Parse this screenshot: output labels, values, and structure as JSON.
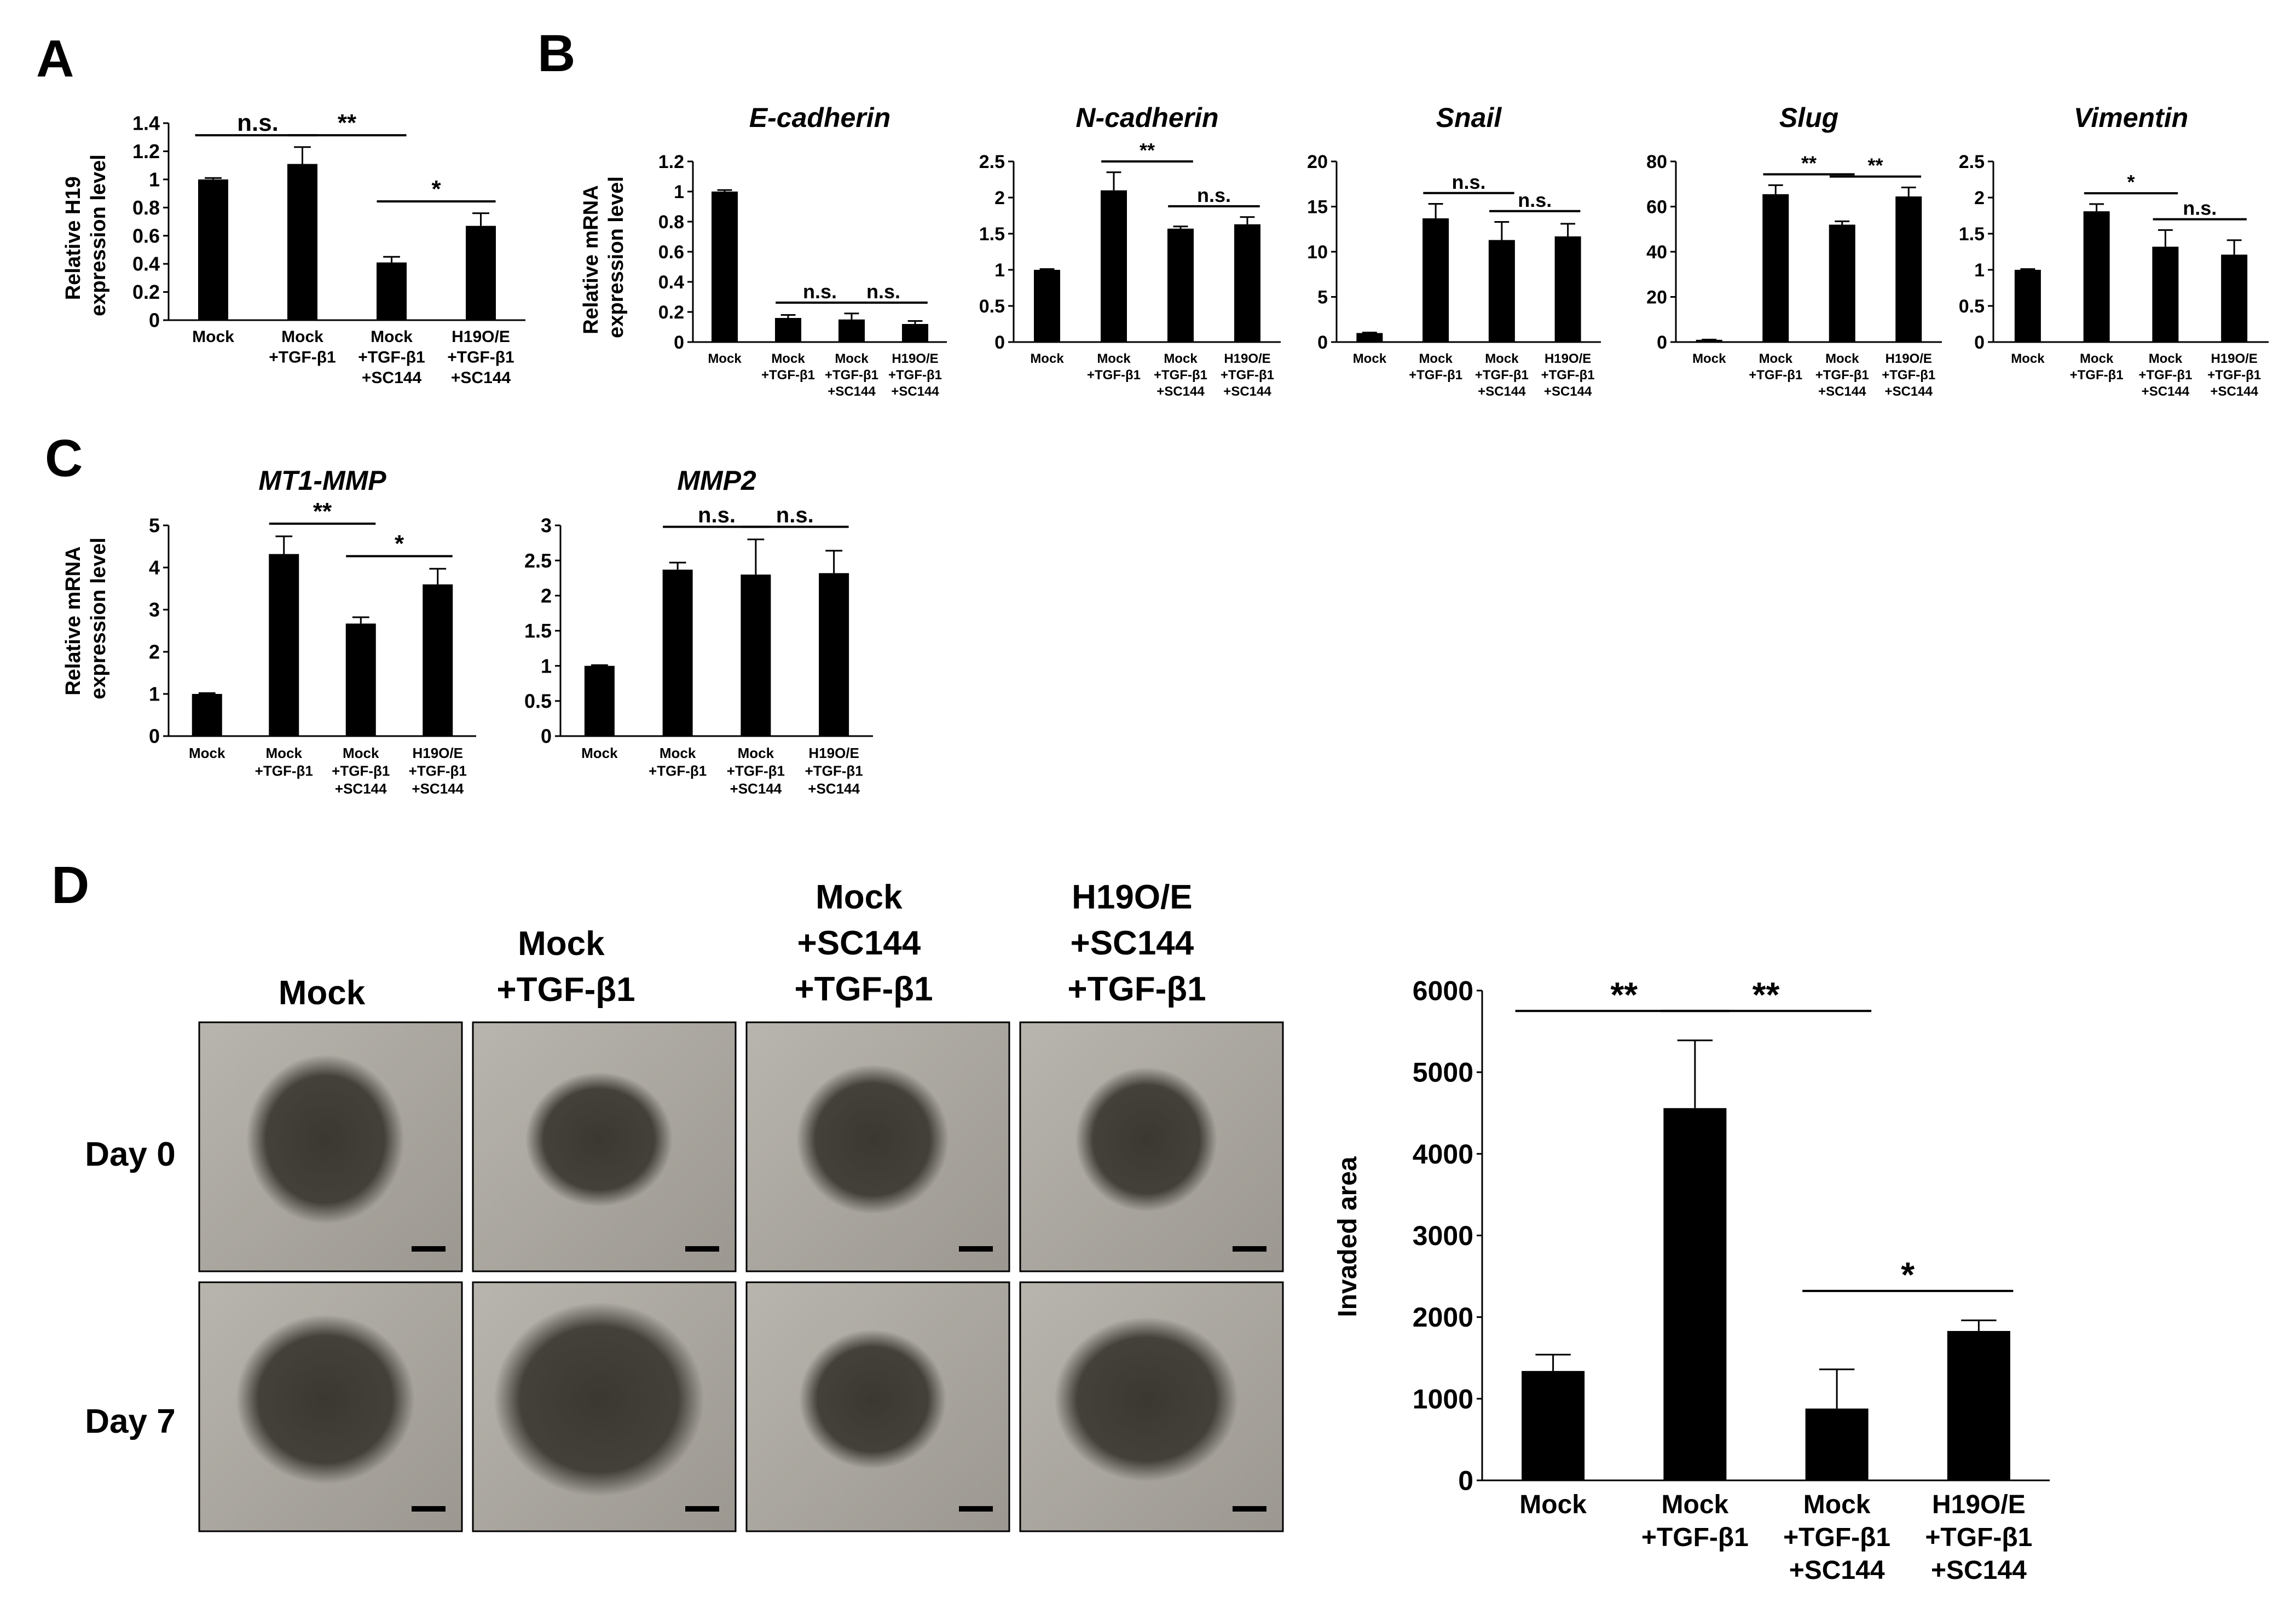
{
  "panels": {
    "A": "A",
    "B": "B",
    "C": "C",
    "D": "D"
  },
  "conditions": {
    "mock": "Mock",
    "tgf": [
      "Mock",
      "+TGF-β1"
    ],
    "sc144": [
      "Mock",
      "+TGF-β1",
      "+SC144"
    ],
    "h19": [
      "H19O/E",
      "+TGF-β1",
      "+SC144"
    ]
  },
  "ylabels": {
    "h19": [
      "Relative H19",
      "expression level"
    ],
    "mrna": [
      "Relative mRNA",
      "expression level"
    ],
    "invaded": "Invaded area"
  },
  "photo_panel": {
    "columns": [
      [
        "Mock"
      ],
      [
        "Mock",
        "+TGF-β1"
      ],
      [
        "Mock",
        "+SC144",
        "+TGF-β1"
      ],
      [
        "H19O/E",
        "+SC144",
        "+TGF-β1"
      ]
    ],
    "rows": [
      "Day 0",
      "Day 7"
    ],
    "image_tint": "#9c9891",
    "sphere_color": "#3a3830"
  },
  "chart_data": [
    {
      "id": "A",
      "type": "bar",
      "title": "",
      "categories": [
        "Mock",
        "Mock +TGF-β1",
        "Mock +TGF-β1 +SC144",
        "H19O/E +TGF-β1 +SC144"
      ],
      "values": [
        1.0,
        1.11,
        0.41,
        0.67
      ],
      "errors": [
        0.01,
        0.12,
        0.04,
        0.09
      ],
      "ylim": [
        0,
        1.4
      ],
      "yticks": [
        "0",
        "0.2",
        "0.4",
        "0.6",
        "0.8",
        "1",
        "1.2",
        "1.4"
      ],
      "ylabel": "Relative H19 expression level",
      "significance": [
        {
          "from": 0,
          "to": 1,
          "label": "n.s."
        },
        {
          "from": 1,
          "to": 2,
          "label": "**"
        },
        {
          "from": 2,
          "to": 3,
          "label": "*"
        }
      ]
    },
    {
      "id": "B1",
      "type": "bar",
      "title": "E-cadherin",
      "categories": [
        "Mock",
        "Mock +TGF-β1",
        "Mock +TGF-β1 +SC144",
        "H19O/E +TGF-β1 +SC144"
      ],
      "values": [
        1.0,
        0.16,
        0.15,
        0.12
      ],
      "errors": [
        0.01,
        0.02,
        0.04,
        0.02
      ],
      "ylim": [
        0,
        1.2
      ],
      "yticks": [
        "0",
        "0.2",
        "0.4",
        "0.6",
        "0.8",
        "1",
        "1.2"
      ],
      "ylabel": "Relative mRNA expression level",
      "significance": [
        {
          "from": 1,
          "to": 2,
          "label": "n.s."
        },
        {
          "from": 2,
          "to": 3,
          "label": "n.s."
        }
      ]
    },
    {
      "id": "B2",
      "type": "bar",
      "title": "N-cadherin",
      "categories": [
        "Mock",
        "Mock +TGF-β1",
        "Mock +TGF-β1 +SC144",
        "H19O/E +TGF-β1 +SC144"
      ],
      "values": [
        1.0,
        2.1,
        1.57,
        1.63
      ],
      "errors": [
        0.01,
        0.25,
        0.03,
        0.1
      ],
      "ylim": [
        0,
        2.5
      ],
      "yticks": [
        "0",
        "0.5",
        "1",
        "1.5",
        "2",
        "2.5"
      ],
      "ylabel": "",
      "significance": [
        {
          "from": 1,
          "to": 2,
          "label": "**"
        },
        {
          "from": 2,
          "to": 3,
          "label": "n.s."
        }
      ]
    },
    {
      "id": "B3",
      "type": "bar",
      "title": "Snail",
      "categories": [
        "Mock",
        "Mock +TGF-β1",
        "Mock +TGF-β1 +SC144",
        "H19O/E +TGF-β1 +SC144"
      ],
      "values": [
        1.0,
        13.7,
        11.3,
        11.7
      ],
      "errors": [
        0.05,
        1.6,
        2.0,
        1.4
      ],
      "ylim": [
        0,
        20
      ],
      "yticks": [
        "0",
        "5",
        "10",
        "15",
        "20"
      ],
      "ylabel": "",
      "significance": [
        {
          "from": 1,
          "to": 2,
          "label": "n.s."
        },
        {
          "from": 2,
          "to": 3,
          "label": "n.s."
        }
      ]
    },
    {
      "id": "B4",
      "type": "bar",
      "title": "Slug",
      "categories": [
        "Mock",
        "Mock +TGF-β1",
        "Mock +TGF-β1 +SC144",
        "H19O/E +TGF-β1 +SC144"
      ],
      "values": [
        1.0,
        65.5,
        52.0,
        64.5
      ],
      "errors": [
        0.1,
        4.0,
        1.5,
        4.0
      ],
      "ylim": [
        0,
        80
      ],
      "yticks": [
        "0",
        "20",
        "40",
        "60",
        "80"
      ],
      "ylabel": "",
      "significance": [
        {
          "from": 1,
          "to": 2,
          "label": "**"
        },
        {
          "from": 2,
          "to": 3,
          "label": "**"
        }
      ]
    },
    {
      "id": "B5",
      "type": "bar",
      "title": "Vimentin",
      "categories": [
        "Mock",
        "Mock +TGF-β1",
        "Mock +TGF-β1 +SC144",
        "H19O/E +TGF-β1 +SC144"
      ],
      "values": [
        1.0,
        1.81,
        1.32,
        1.21
      ],
      "errors": [
        0.01,
        0.1,
        0.23,
        0.2
      ],
      "ylim": [
        0,
        2.5
      ],
      "yticks": [
        "0",
        "0.5",
        "1",
        "1.5",
        "2",
        "2.5"
      ],
      "ylabel": "",
      "significance": [
        {
          "from": 1,
          "to": 2,
          "label": "*"
        },
        {
          "from": 2,
          "to": 3,
          "label": "n.s."
        }
      ]
    },
    {
      "id": "C1",
      "type": "bar",
      "title": "MT1-MMP",
      "categories": [
        "Mock",
        "Mock +TGF-β1",
        "Mock +TGF-β1 +SC144",
        "H19O/E +TGF-β1 +SC144"
      ],
      "values": [
        1.0,
        4.32,
        2.67,
        3.6
      ],
      "errors": [
        0.02,
        0.42,
        0.15,
        0.37
      ],
      "ylim": [
        0,
        5
      ],
      "yticks": [
        "0",
        "1",
        "2",
        "3",
        "4",
        "5"
      ],
      "ylabel": "Relative mRNA expression level",
      "significance": [
        {
          "from": 1,
          "to": 2,
          "label": "**"
        },
        {
          "from": 2,
          "to": 3,
          "label": "*"
        }
      ]
    },
    {
      "id": "C2",
      "type": "bar",
      "title": "MMP2",
      "categories": [
        "Mock",
        "Mock +TGF-β1",
        "Mock +TGF-β1 +SC144",
        "H19O/E +TGF-β1 +SC144"
      ],
      "values": [
        1.0,
        2.37,
        2.3,
        2.32
      ],
      "errors": [
        0.01,
        0.1,
        0.5,
        0.32
      ],
      "ylim": [
        0,
        3
      ],
      "yticks": [
        "0",
        "0.5",
        "1",
        "1.5",
        "2",
        "2.5",
        "3"
      ],
      "ylabel": "",
      "significance": [
        {
          "from": 1,
          "to": 2,
          "label": "n.s."
        },
        {
          "from": 2,
          "to": 3,
          "label": "n.s."
        }
      ]
    },
    {
      "id": "D",
      "type": "bar",
      "title": "",
      "categories": [
        "Mock",
        "Mock +TGF-β1",
        "Mock +TGF-β1 +SC144",
        "H19O/E +TGF-β1 +SC144"
      ],
      "values": [
        1340,
        4560,
        880,
        1830
      ],
      "errors": [
        200,
        830,
        480,
        130
      ],
      "ylim": [
        0,
        6000
      ],
      "yticks": [
        "0",
        "1000",
        "2000",
        "3000",
        "4000",
        "5000",
        "6000"
      ],
      "ylabel": "Invaded area",
      "significance": [
        {
          "from": 0,
          "to": 1,
          "label": "**"
        },
        {
          "from": 1,
          "to": 2,
          "label": "**"
        },
        {
          "from": 2,
          "to": 3,
          "label": "*"
        }
      ]
    }
  ]
}
